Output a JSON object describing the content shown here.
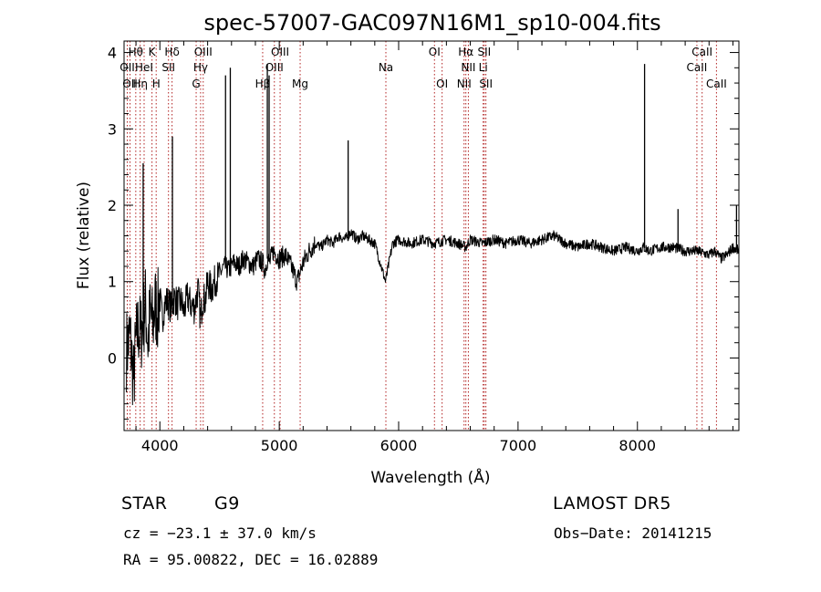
{
  "chart_data": {
    "type": "line",
    "title": "spec-57007-GAC097N16M1_sp10-004.fits",
    "xlabel": "Wavelength (Å)",
    "ylabel": "Flux (relative)",
    "xlim": [
      3700,
      8850
    ],
    "ylim": [
      -0.95,
      4.15
    ],
    "xticks": [
      4000,
      5000,
      6000,
      7000,
      8000
    ],
    "yticks": [
      0,
      1,
      2,
      3,
      4
    ],
    "grid": false,
    "series": [
      {
        "name": "",
        "x": [
          3720,
          3750,
          3780,
          3800,
          3820,
          3840,
          3860,
          3880,
          3900,
          3920,
          3940,
          3960,
          3980,
          4000,
          4020,
          4040,
          4060,
          4080,
          4100,
          4120,
          4150,
          4180,
          4200,
          4230,
          4260,
          4290,
          4320,
          4340,
          4360,
          4380,
          4400,
          4430,
          4460,
          4500,
          4540,
          4580,
          4620,
          4660,
          4700,
          4740,
          4780,
          4820,
          4860,
          4880,
          4900,
          4920,
          4950,
          5000,
          5050,
          5100,
          5150,
          5200,
          5250,
          5300,
          5350,
          5400,
          5450,
          5500,
          5550,
          5600,
          5650,
          5700,
          5800,
          5890,
          5950,
          6000,
          6100,
          6200,
          6300,
          6400,
          6500,
          6563,
          6600,
          6700,
          6800,
          6900,
          7000,
          7100,
          7200,
          7300,
          7400,
          7500,
          7600,
          7700,
          7800,
          7900,
          8000,
          8050,
          8100,
          8200,
          8300,
          8400,
          8500,
          8600,
          8650,
          8700,
          8750,
          8800,
          8850
        ],
        "values": [
          0.1,
          0.3,
          -0.3,
          0.2,
          0.4,
          0.3,
          0.5,
          0.7,
          0.2,
          0.6,
          0.4,
          0.7,
          0.6,
          0.8,
          0.5,
          0.7,
          0.75,
          0.7,
          0.65,
          0.8,
          0.7,
          0.75,
          0.6,
          0.8,
          0.7,
          0.65,
          0.9,
          0.5,
          0.8,
          0.75,
          1.0,
          0.9,
          1.0,
          1.1,
          1.2,
          1.15,
          1.25,
          1.2,
          1.3,
          1.25,
          1.2,
          1.3,
          1.25,
          1.15,
          1.3,
          1.25,
          1.4,
          1.3,
          1.35,
          1.2,
          1.0,
          1.25,
          1.4,
          1.5,
          1.45,
          1.55,
          1.5,
          1.6,
          1.55,
          1.65,
          1.55,
          1.6,
          1.5,
          1.0,
          1.5,
          1.55,
          1.5,
          1.55,
          1.5,
          1.55,
          1.5,
          1.45,
          1.55,
          1.5,
          1.55,
          1.5,
          1.55,
          1.5,
          1.55,
          1.6,
          1.5,
          1.45,
          1.5,
          1.45,
          1.4,
          1.45,
          1.4,
          1.45,
          1.4,
          1.45,
          1.45,
          1.4,
          1.4,
          1.35,
          1.4,
          1.3,
          1.35,
          1.45,
          1.4
        ]
      }
    ],
    "spikes": [
      {
        "x": 3860,
        "peak": 2.55
      },
      {
        "x": 4105,
        "peak": 2.9
      },
      {
        "x": 4550,
        "peak": 3.7
      },
      {
        "x": 4590,
        "peak": 3.8
      },
      {
        "x": 4900,
        "peak": 3.85
      },
      {
        "x": 4915,
        "peak": 3.7
      },
      {
        "x": 5577,
        "peak": 2.85
      },
      {
        "x": 8060,
        "peak": 3.85
      },
      {
        "x": 8340,
        "peak": 1.95
      },
      {
        "x": 8830,
        "peak": 2.0
      }
    ],
    "line_markers": [
      {
        "x": 3727,
        "label": "OII",
        "row": 2
      },
      {
        "x": 3750,
        "label": "OII",
        "row": 3
      },
      {
        "x": 3798,
        "label": "Hθ",
        "row": 1
      },
      {
        "x": 3835,
        "label": "Hη",
        "row": 3
      },
      {
        "x": 3868,
        "label": "HeI",
        "row": 2
      },
      {
        "x": 3934,
        "label": "K",
        "row": 1
      },
      {
        "x": 3969,
        "label": "H",
        "row": 3
      },
      {
        "x": 4102,
        "label": "Hδ",
        "row": 1
      },
      {
        "x": 4072,
        "label": "SII",
        "row": 2
      },
      {
        "x": 4304,
        "label": "G",
        "row": 3
      },
      {
        "x": 4341,
        "label": "Hγ",
        "row": 2
      },
      {
        "x": 4363,
        "label": "OIII",
        "row": 1
      },
      {
        "x": 4861,
        "label": "Hβ",
        "row": 3
      },
      {
        "x": 4959,
        "label": "OIII",
        "row": 2
      },
      {
        "x": 5007,
        "label": "OIII",
        "row": 1
      },
      {
        "x": 5175,
        "label": "Mg",
        "row": 3
      },
      {
        "x": 5893,
        "label": "Na",
        "row": 2
      },
      {
        "x": 6300,
        "label": "OI",
        "row": 1
      },
      {
        "x": 6364,
        "label": "OI",
        "row": 3
      },
      {
        "x": 6548,
        "label": "NII",
        "row": 3
      },
      {
        "x": 6563,
        "label": "Hα",
        "row": 1
      },
      {
        "x": 6584,
        "label": "NII",
        "row": 2
      },
      {
        "x": 6708,
        "label": "Li",
        "row": 2
      },
      {
        "x": 6717,
        "label": "SII",
        "row": 1
      },
      {
        "x": 6731,
        "label": "SII",
        "row": 3
      },
      {
        "x": 8498,
        "label": "CaII",
        "row": 2
      },
      {
        "x": 8542,
        "label": "CaII",
        "row": 1
      },
      {
        "x": 8662,
        "label": "CaII",
        "row": 3
      }
    ]
  },
  "info": {
    "class_label": "STAR",
    "subclass_label": "G9",
    "survey": "LAMOST  DR5",
    "velocity": "cz = −23.1 ± 37.0 km/s",
    "obs_date": "Obs−Date: 20141215",
    "coords": "RA =  95.00822, DEC =  16.02889"
  },
  "colors": {
    "spectrum": "#000000",
    "marker_line": "#b22222",
    "axis": "#000000",
    "background": "#ffffff"
  }
}
